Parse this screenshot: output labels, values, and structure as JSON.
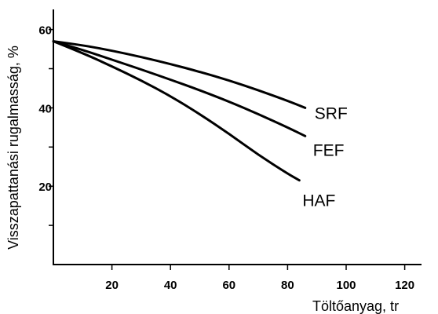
{
  "chart_data": {
    "type": "line",
    "xlabel": "Töltőanyag, tr",
    "ylabel": "Visszapattanási rugalmasság, %",
    "xlim": [
      0,
      125
    ],
    "ylim": [
      0,
      65
    ],
    "x_ticks": [
      20,
      40,
      60,
      80,
      100,
      120
    ],
    "x_tick_labels": [
      "20",
      "40",
      "60",
      "80",
      "100",
      "120"
    ],
    "y_ticks": [
      20,
      40,
      60
    ],
    "y_tick_labels": [
      "20",
      "40",
      "60"
    ],
    "y_minor_ticks": [
      10,
      30,
      50
    ],
    "grid": false,
    "series": [
      {
        "name": "SRF",
        "x": [
          0,
          10,
          20,
          30,
          40,
          50,
          60,
          70,
          80,
          86
        ],
        "y": [
          57,
          56,
          54.6,
          53,
          51.2,
          49.2,
          47,
          44.5,
          41.8,
          40
        ]
      },
      {
        "name": "FEF",
        "x": [
          0,
          10,
          20,
          30,
          40,
          50,
          60,
          70,
          80,
          86
        ],
        "y": [
          57,
          54.8,
          52.3,
          49.8,
          47.2,
          44.5,
          41.6,
          38.4,
          35,
          32.8
        ]
      },
      {
        "name": "HAF",
        "x": [
          0,
          10,
          20,
          30,
          40,
          50,
          60,
          70,
          80,
          84
        ],
        "y": [
          57,
          54,
          50.6,
          47,
          43,
          38.4,
          33.4,
          28,
          23.2,
          21.5
        ]
      }
    ]
  }
}
